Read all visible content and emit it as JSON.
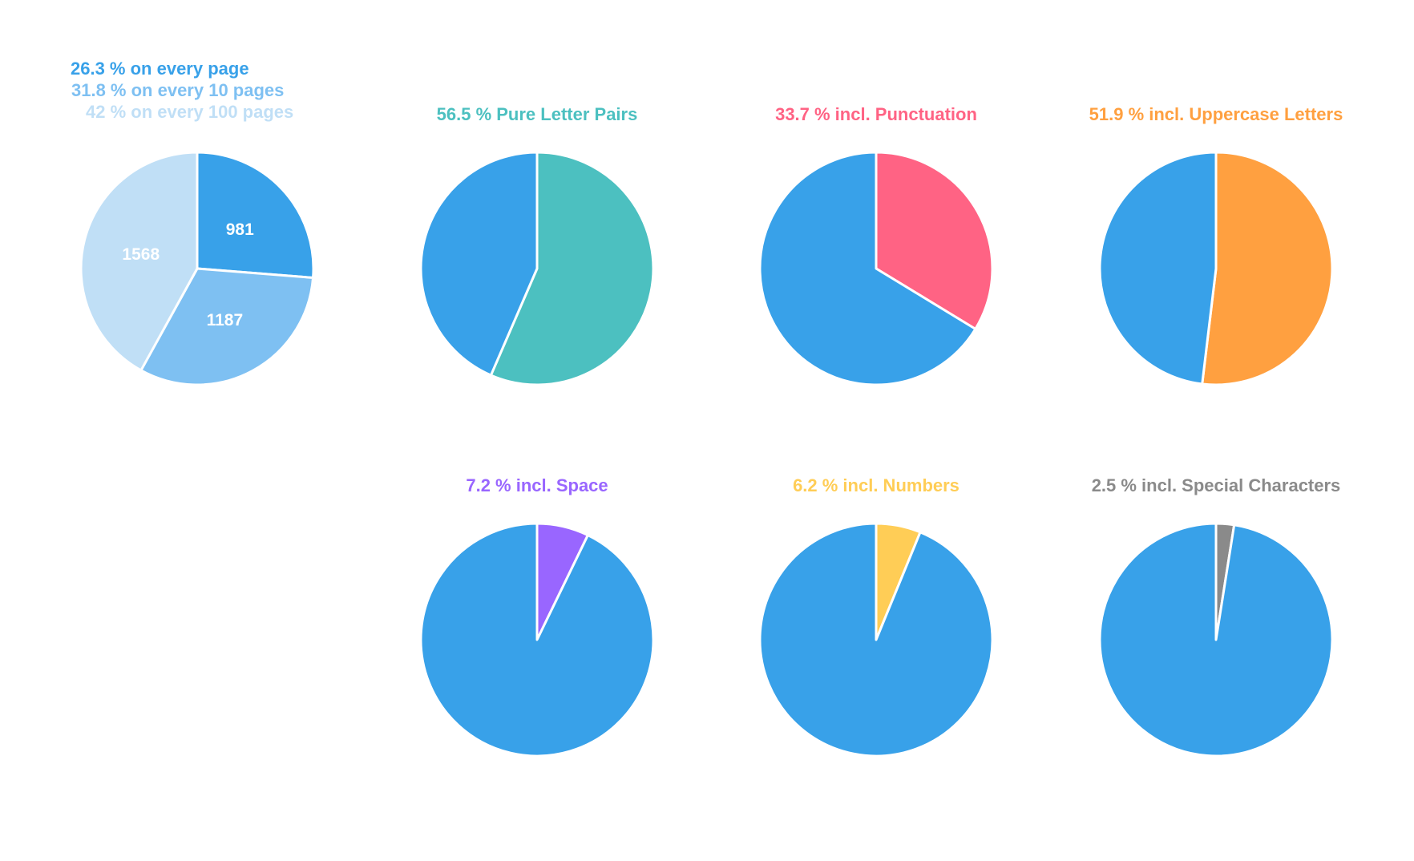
{
  "colors": {
    "blue": "#38a1e9",
    "blue_medium": "#7ec0f2",
    "blue_light": "#c0dff6",
    "teal": "#4cc0c0",
    "pink": "#ff6384",
    "orange": "#ffa040",
    "purple": "#9966ff",
    "yellow": "#ffcd56",
    "gray": "#8a8a8a"
  },
  "chart_data": [
    {
      "type": "pie",
      "legend_position": "top-left",
      "legend": [
        {
          "text": "26.3 % on every page",
          "color": "#38a1e9"
        },
        {
          "text": "31.8 % on every 10 pages",
          "color": "#7ec0f2"
        },
        {
          "text": "42 % on every 100 pages",
          "color": "#c0dff6"
        }
      ],
      "slices": [
        {
          "label": "981",
          "value": 981,
          "color": "#38a1e9"
        },
        {
          "label": "1187",
          "value": 1187,
          "color": "#7ec0f2"
        },
        {
          "label": "1568",
          "value": 1568,
          "color": "#c0dff6"
        }
      ]
    },
    {
      "type": "pie",
      "title": "56.5 % Pure Letter Pairs",
      "title_color": "#4cc0c0",
      "slices": [
        {
          "value": 56.5,
          "color": "#4cc0c0"
        },
        {
          "value": 43.5,
          "color": "#38a1e9"
        }
      ]
    },
    {
      "type": "pie",
      "title": "33.7 % incl. Punctuation",
      "title_color": "#ff6384",
      "slices": [
        {
          "value": 33.7,
          "color": "#ff6384"
        },
        {
          "value": 66.3,
          "color": "#38a1e9"
        }
      ]
    },
    {
      "type": "pie",
      "title": "51.9 % incl. Uppercase Letters",
      "title_color": "#ffa040",
      "slices": [
        {
          "value": 51.9,
          "color": "#ffa040"
        },
        {
          "value": 48.1,
          "color": "#38a1e9"
        }
      ]
    },
    {
      "type": "pie",
      "title": "7.2 % incl. Space",
      "title_color": "#9966ff",
      "slices": [
        {
          "value": 7.2,
          "color": "#9966ff"
        },
        {
          "value": 92.8,
          "color": "#38a1e9"
        }
      ]
    },
    {
      "type": "pie",
      "title": "6.2 % incl. Numbers",
      "title_color": "#ffcd56",
      "slices": [
        {
          "value": 6.2,
          "color": "#ffcd56"
        },
        {
          "value": 93.8,
          "color": "#38a1e9"
        }
      ]
    },
    {
      "type": "pie",
      "title": "2.5 % incl. Special Characters",
      "title_color": "#8a8a8a",
      "slices": [
        {
          "value": 2.5,
          "color": "#8a8a8a"
        },
        {
          "value": 97.5,
          "color": "#38a1e9"
        }
      ]
    }
  ]
}
